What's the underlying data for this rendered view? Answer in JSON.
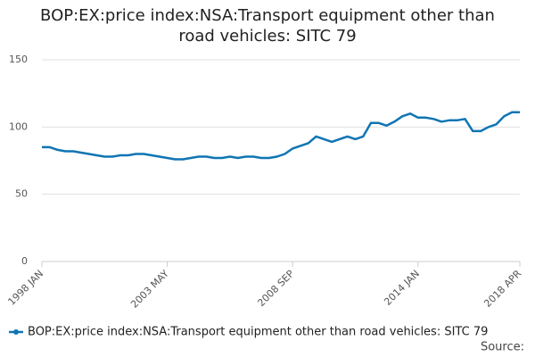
{
  "chart_data": {
    "type": "line",
    "title": "BOP:EX:price index:NSA:Transport equipment other than road vehicles: SITC 79",
    "categories": [
      "1998 JAN",
      null,
      null,
      null,
      null,
      null,
      null,
      null,
      null,
      null,
      null,
      null,
      null,
      null,
      null,
      null,
      "2003 MAY",
      null,
      null,
      null,
      null,
      null,
      null,
      null,
      null,
      null,
      null,
      null,
      null,
      null,
      null,
      null,
      "2008 SEP",
      null,
      null,
      null,
      null,
      null,
      null,
      null,
      null,
      null,
      null,
      null,
      null,
      null,
      null,
      null,
      "2014 JAN",
      null,
      null,
      null,
      null,
      null,
      null,
      null,
      null,
      null,
      null,
      null,
      null,
      "2018 APR"
    ],
    "series": [
      {
        "name": "BOP:EX:price index:NSA:Transport equipment other than road vehicles: SITC 79",
        "color": "#0f75b3",
        "values": [
          85,
          85,
          83,
          82,
          82,
          81,
          80,
          79,
          78,
          78,
          79,
          79,
          80,
          80,
          79,
          78,
          77,
          76,
          76,
          77,
          78,
          78,
          77,
          77,
          78,
          77,
          78,
          78,
          77,
          77,
          78,
          80,
          84,
          86,
          88,
          93,
          91,
          89,
          91,
          93,
          91,
          93,
          103,
          103,
          101,
          104,
          108,
          110,
          107,
          107,
          106,
          104,
          105,
          105,
          106,
          97,
          97,
          100,
          102,
          108,
          111,
          111
        ]
      }
    ],
    "ylim": [
      0,
      150
    ],
    "yticks": [
      0,
      50,
      100,
      150
    ],
    "grid": true,
    "source": "Source:"
  }
}
